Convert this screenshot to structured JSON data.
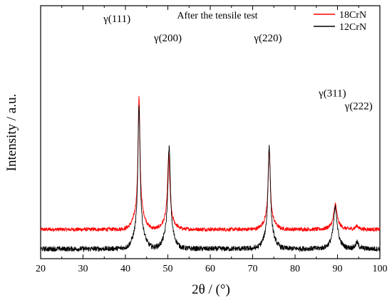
{
  "chart_data": {
    "type": "line",
    "title": "After the tensile test",
    "xlabel": "2θ / (°)",
    "ylabel": "Intensity / a.u.",
    "xlim": [
      20,
      100
    ],
    "x_ticks": [
      "20",
      "30",
      "40",
      "50",
      "60",
      "70",
      "80",
      "90",
      "100"
    ],
    "y_ticks_shown": false,
    "legend_position": "top-right",
    "series": [
      {
        "name": "18CrN",
        "color": "#ff0000",
        "baseline": 0.6,
        "noise": 0.015,
        "peaks": [
          {
            "x": 43.2,
            "height": 3.65,
            "width": 0.28
          },
          {
            "x": 50.2,
            "height": 2.05,
            "width": 0.32
          },
          {
            "x": 73.9,
            "height": 2.2,
            "width": 0.3
          },
          {
            "x": 89.5,
            "height": 0.7,
            "width": 0.45
          },
          {
            "x": 94.6,
            "height": 0.1,
            "width": 0.35
          }
        ]
      },
      {
        "name": "12CrN",
        "color": "#000000",
        "baseline": 0.0,
        "noise": 0.02,
        "peaks": [
          {
            "x": 43.2,
            "height": 3.98,
            "width": 0.3
          },
          {
            "x": 50.3,
            "height": 2.8,
            "width": 0.35
          },
          {
            "x": 73.9,
            "height": 2.85,
            "width": 0.33
          },
          {
            "x": 89.5,
            "height": 1.15,
            "width": 0.5
          },
          {
            "x": 94.6,
            "height": 0.18,
            "width": 0.35
          }
        ]
      }
    ],
    "annotations": [
      {
        "text": "γ(111)",
        "x": 38.0,
        "y": 7.0
      },
      {
        "text": "γ(200)",
        "x": 50.0,
        "y": 6.4
      },
      {
        "text": "γ(220)",
        "x": 73.6,
        "y": 6.4
      },
      {
        "text": "γ(311)",
        "x": 88.8,
        "y": 4.7
      },
      {
        "text": "γ(222)",
        "x": 95.0,
        "y": 4.3
      }
    ]
  }
}
